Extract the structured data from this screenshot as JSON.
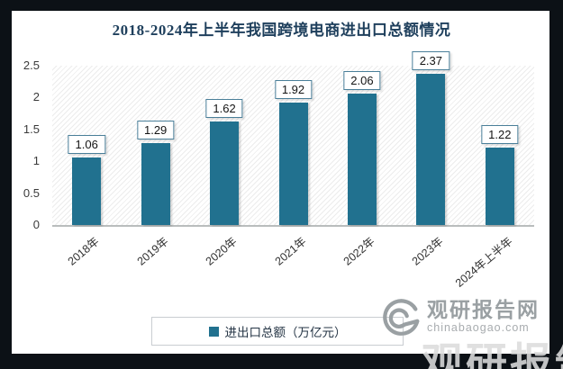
{
  "title": "2018-2024年上半年我国跨境电商进出口总额情况",
  "chart_data": {
    "type": "bar",
    "title": "2018-2024年上半年我国跨境电商进出口总额情况",
    "categories": [
      "2018年",
      "2019年",
      "2020年",
      "2021年",
      "2022年",
      "2023年",
      "2024年上半年"
    ],
    "values": [
      1.06,
      1.29,
      1.62,
      1.92,
      2.06,
      2.37,
      1.22
    ],
    "data_labels": [
      "1.06",
      "1.29",
      "1.62",
      "1.92",
      "2.06",
      "2.37",
      "1.22"
    ],
    "series_name": "进出口总额（万亿元）",
    "xlabel": "",
    "ylabel": "",
    "ylim": [
      0,
      2.5
    ],
    "yticks": [
      "0",
      "0.5",
      "1",
      "1.5",
      "2",
      "2.5"
    ],
    "ytick_values": [
      0,
      0.5,
      1,
      1.5,
      2,
      2.5
    ],
    "grid": false,
    "legend_position": "bottom",
    "background_pattern": "diagonal-hatch"
  },
  "legend": {
    "label": "进出口总额（万亿元）"
  },
  "watermark": {
    "site_name": "观研报告网",
    "site_url": "chinabaogao.com",
    "logo": "swirl-logo",
    "corner_text": "观研报告网"
  },
  "colors": {
    "bar": "#21718f",
    "title_text": "#1e3f5c",
    "frame": "#0c1116",
    "label_box_border": "#4a7f99",
    "axis_line": "#b9bdbd",
    "legend_border": "#c9cdd1",
    "watermark_gray": "#9aa0a3"
  }
}
